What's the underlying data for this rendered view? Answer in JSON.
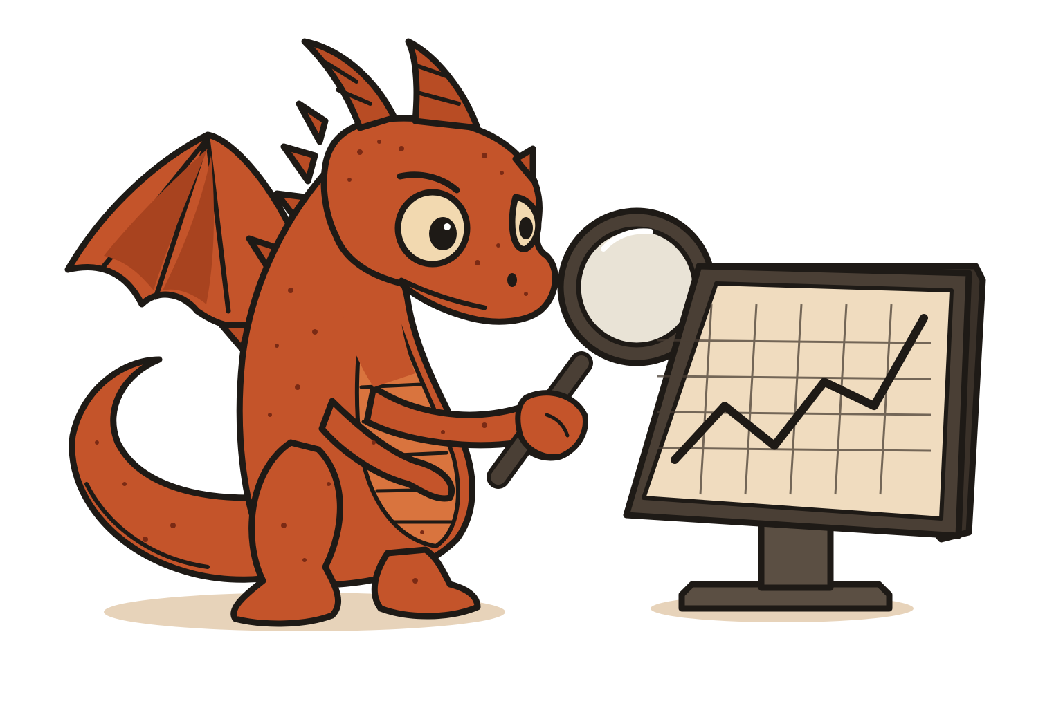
{
  "illustration": {
    "subject": "dragon",
    "props": [
      "magnifying-glass",
      "computer-monitor"
    ],
    "monitor_chart": {
      "type": "line",
      "trend": "rising zigzag",
      "relative_points": [
        {
          "x": 0,
          "y": 0.0
        },
        {
          "x": 1,
          "y": 0.38
        },
        {
          "x": 2,
          "y": 0.1
        },
        {
          "x": 3,
          "y": 0.55
        },
        {
          "x": 4,
          "y": 0.38
        },
        {
          "x": 5,
          "y": 1.0
        }
      ],
      "grid": true
    },
    "colors": {
      "dragon_body": "#c4542a",
      "dragon_belly": "#d9743e",
      "wing_membrane": "#a8431f",
      "outline": "#1e1a16",
      "horn": "#b84c24",
      "eye_white": "#f2d9b0",
      "screen": "#f0dcbf",
      "monitor_frame": "#4a3f35",
      "stand": "#5b4f43",
      "lens": "#e9e3d6",
      "ground_shadow": "#e7d3ba"
    }
  }
}
